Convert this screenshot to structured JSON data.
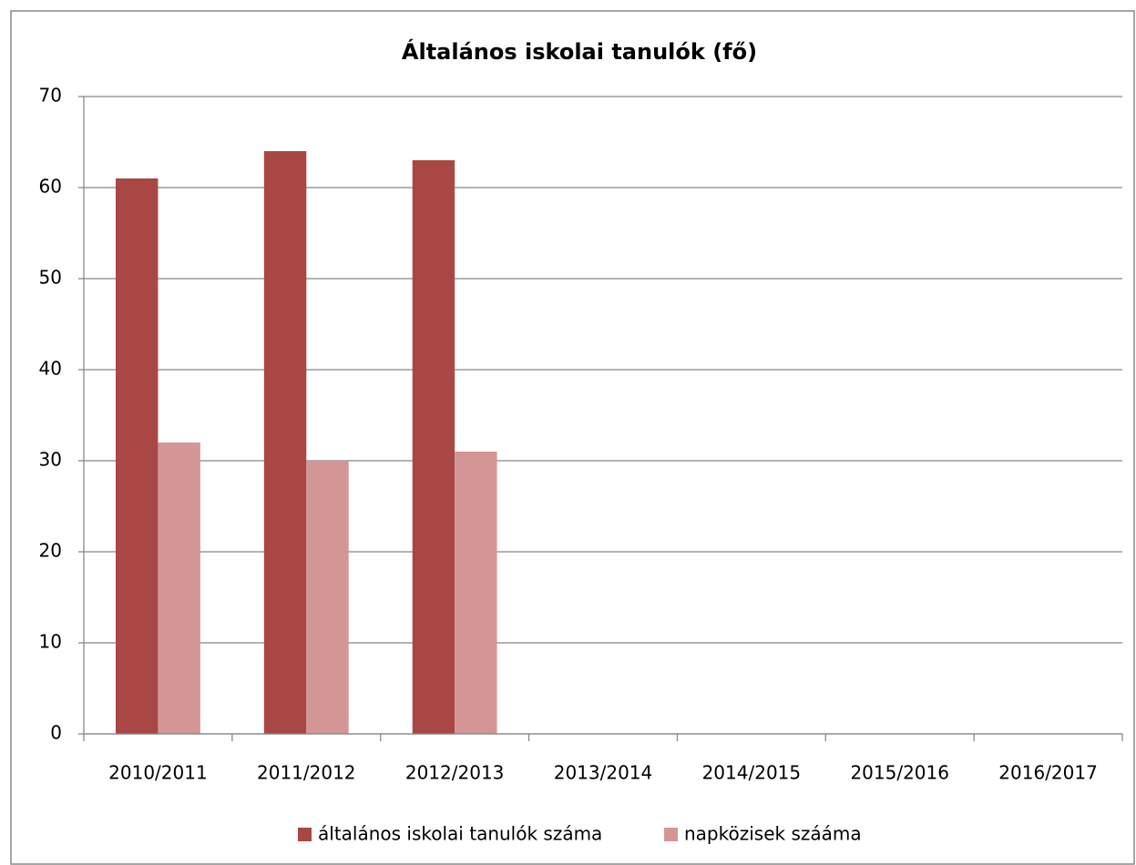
{
  "chart_data": {
    "type": "bar",
    "title": "Általános iskolai tanulók (fő)",
    "categories": [
      "2010/2011",
      "2011/2012",
      "2012/2013",
      "2013/2014",
      "2014/2015",
      "2015/2016",
      "2016/2017"
    ],
    "series": [
      {
        "name": "általános iskolai tanulók száma",
        "color": "#a94744",
        "values": [
          61,
          64,
          63,
          null,
          null,
          null,
          null
        ]
      },
      {
        "name": "napközisek szááma",
        "color": "#d49694",
        "values": [
          32,
          30,
          31,
          null,
          null,
          null,
          null
        ]
      }
    ],
    "ylim": [
      0,
      70
    ],
    "yticks": [
      0,
      10,
      20,
      30,
      40,
      50,
      60,
      70
    ],
    "grid": true,
    "legend": "bottom"
  }
}
